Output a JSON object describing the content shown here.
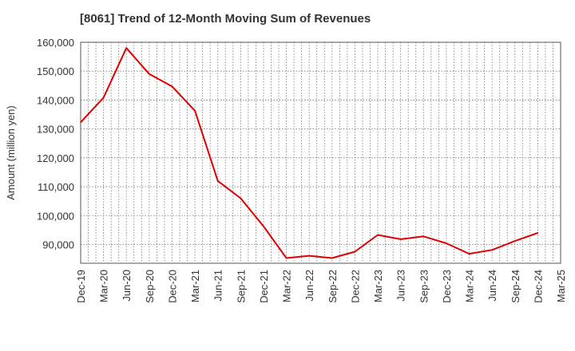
{
  "chart_data": {
    "type": "line",
    "title": "[8061]  Trend of 12-Month Moving Sum of Revenues",
    "xlabel": "",
    "ylabel": "Amount (million yen)",
    "ylim": [
      83500,
      160000
    ],
    "y_ticks": [
      90000,
      100000,
      110000,
      120000,
      130000,
      140000,
      150000,
      160000
    ],
    "y_tick_labels": [
      "90,000",
      "100,000",
      "110,000",
      "120,000",
      "130,000",
      "140,000",
      "150,000",
      "160,000"
    ],
    "categories": [
      "Dec-19",
      "Mar-20",
      "Jun-20",
      "Sep-20",
      "Dec-20",
      "Mar-21",
      "Jun-21",
      "Sep-21",
      "Dec-21",
      "Mar-22",
      "Jun-22",
      "Sep-22",
      "Dec-22",
      "Mar-23",
      "Jun-23",
      "Sep-23",
      "Dec-23",
      "Mar-24",
      "Jun-24",
      "Sep-24",
      "Dec-24",
      "Mar-25"
    ],
    "grid": true,
    "series": [
      {
        "color": "#e00000",
        "values": [
          132300,
          140800,
          158000,
          149000,
          144700,
          136300,
          112000,
          106000,
          96300,
          85300,
          86100,
          85300,
          87500,
          93300,
          91800,
          92800,
          90400,
          86800,
          88100,
          91200,
          94000,
          null
        ]
      }
    ]
  }
}
